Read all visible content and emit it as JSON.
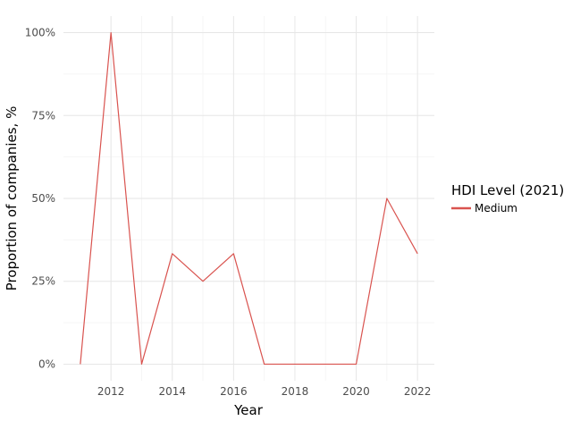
{
  "chart_data": {
    "type": "line",
    "xlabel": "Year",
    "ylabel": "Proportion of companies, %",
    "x": [
      2011,
      2012,
      2013,
      2014,
      2015,
      2016,
      2017,
      2018,
      2019,
      2020,
      2021,
      2022
    ],
    "series": [
      {
        "name": "Medium",
        "color": "#d9534f",
        "values": [
          0,
          100,
          0,
          33.33,
          25,
          33.33,
          0,
          0,
          0,
          0,
          50,
          33.33
        ]
      }
    ],
    "x_ticks": [
      "2012",
      "2014",
      "2016",
      "2018",
      "2020",
      "2022"
    ],
    "y_ticks": [
      "0%",
      "25%",
      "50%",
      "75%",
      "100%"
    ],
    "xlim": [
      2010.45,
      2022.55
    ],
    "ylim": [
      -5,
      105
    ],
    "grid": true,
    "legend": {
      "title": "HDI Level (2021)",
      "placement": "right"
    }
  }
}
